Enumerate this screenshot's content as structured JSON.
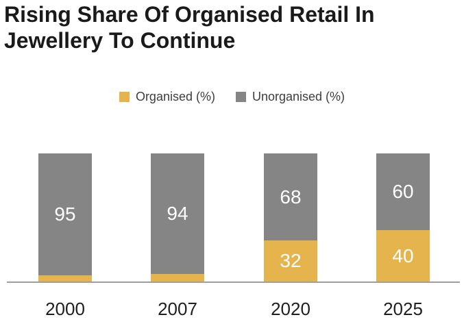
{
  "title": "Rising Share Of Organised Retail In Jewellery To Continue",
  "legend": [
    {
      "label": "Organised (%)",
      "color": "#E5B44C"
    },
    {
      "label": "Unorganised (%)",
      "color": "#858585"
    }
  ],
  "colors": {
    "organised": "#E5B44C",
    "unorganised": "#858585",
    "axis_line": "#9E9E9E",
    "title_text": "#1A1A1A",
    "tick_text": "#1F1F1F",
    "legend_text": "#3D3D3D",
    "value_label_text": "#FFFFFF",
    "background": "#FFFFFF"
  },
  "chart_data": {
    "type": "bar",
    "subtype": "stacked-100",
    "title": "Rising Share Of Organised Retail In Jewellery To Continue",
    "categories": [
      "2000",
      "2007",
      "2020",
      "2025"
    ],
    "series": [
      {
        "name": "Organised (%)",
        "key": "organised",
        "color": "#E5B44C",
        "values": [
          5,
          6,
          32,
          40
        ]
      },
      {
        "name": "Unorganised (%)",
        "key": "unorganised",
        "color": "#858585",
        "values": [
          95,
          94,
          68,
          60
        ]
      }
    ],
    "xlabel": "",
    "ylabel": "",
    "ylim": [
      0,
      100
    ],
    "grid": false,
    "y_axis_visible": false,
    "legend_position": "top",
    "value_labels": true
  }
}
